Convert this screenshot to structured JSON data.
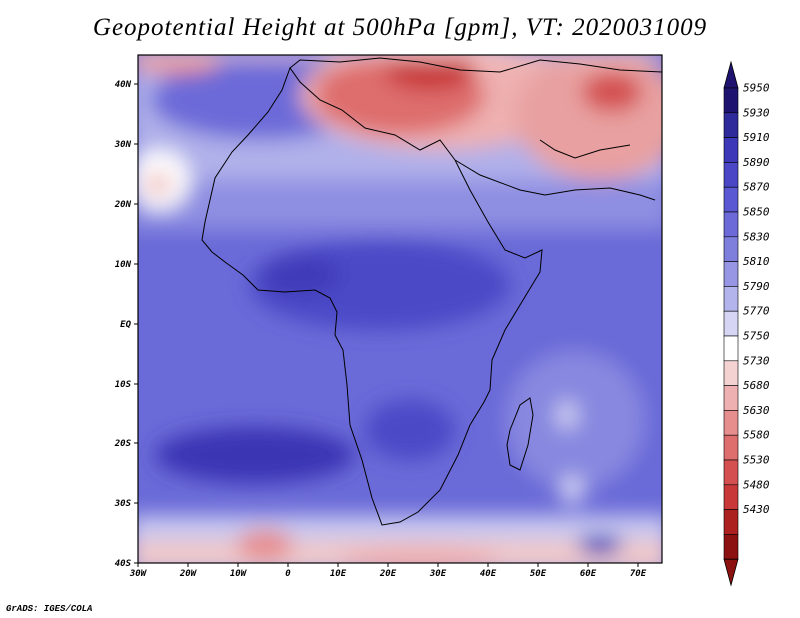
{
  "title": "Geopotential Height at 500hPa [gpm], VT: 2020031009",
  "footer": "GrADS: IGES/COLA",
  "axes": {
    "lon_labels": [
      "30W",
      "20W",
      "10W",
      "0",
      "10E",
      "20E",
      "30E",
      "40E",
      "50E",
      "60E",
      "70E"
    ],
    "lat_labels": [
      "40N",
      "30N",
      "20N",
      "10N",
      "EQ",
      "10S",
      "20S",
      "30S",
      "40S"
    ]
  },
  "colorbar": {
    "levels": [
      "5950",
      "5930",
      "5910",
      "5890",
      "5870",
      "5850",
      "5830",
      "5810",
      "5790",
      "5770",
      "5750",
      "5730",
      "5680",
      "5630",
      "5580",
      "5530",
      "5480",
      "5430"
    ],
    "colors": [
      "#1e1470",
      "#2f2a9c",
      "#3d38b8",
      "#4a46c6",
      "#5a58d2",
      "#6c6ad8",
      "#7e7edd",
      "#9696e4",
      "#b4b4ec",
      "#d6d6f4",
      "#ffffff",
      "#f5d2d2",
      "#eeb0b0",
      "#e68e8e",
      "#de6d6d",
      "#d44f4f",
      "#c83838",
      "#ac2020",
      "#8c1212"
    ],
    "arrow_top_color": "#1e1470",
    "arrow_bottom_color": "#8c1212"
  }
}
